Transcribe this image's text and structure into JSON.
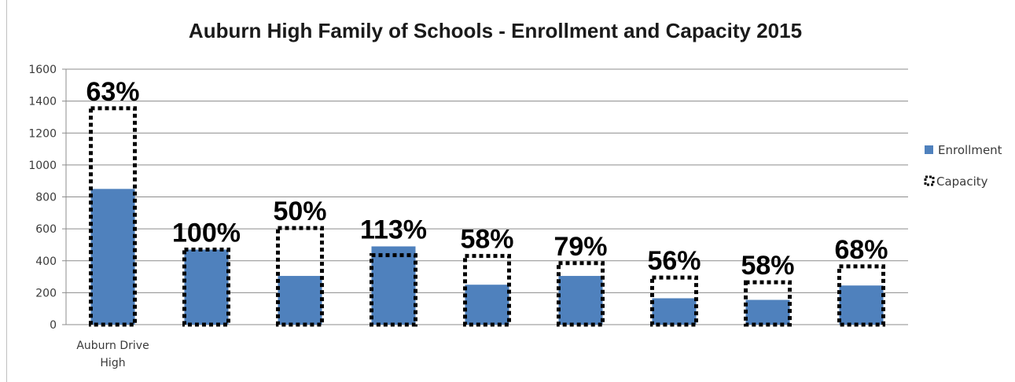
{
  "chart_data": {
    "type": "bar",
    "title": "Auburn High Family of Schools - Enrollment and Capacity 2015",
    "xlabel": "",
    "ylabel": "",
    "ylim": [
      0,
      1600
    ],
    "yticks": [
      0,
      200,
      400,
      600,
      800,
      1000,
      1200,
      1400,
      1600
    ],
    "grid": true,
    "legend_position": "right",
    "categories": [
      "Auburn Drive High",
      "",
      "",
      "",
      "",
      "",
      "",
      "",
      ""
    ],
    "series": [
      {
        "name": "Enrollment",
        "style": "solid",
        "color": "#4f81bd",
        "values": [
          850,
          470,
          305,
          490,
          250,
          305,
          165,
          155,
          245
        ]
      },
      {
        "name": "Capacity",
        "style": "dotted-outline",
        "color": "#000000",
        "values": [
          1355,
          470,
          605,
          435,
          430,
          385,
          295,
          265,
          365
        ]
      }
    ],
    "data_labels": [
      "63%",
      "100%",
      "50%",
      "113%",
      "58%",
      "79%",
      "56%",
      "58%",
      "68%"
    ]
  }
}
